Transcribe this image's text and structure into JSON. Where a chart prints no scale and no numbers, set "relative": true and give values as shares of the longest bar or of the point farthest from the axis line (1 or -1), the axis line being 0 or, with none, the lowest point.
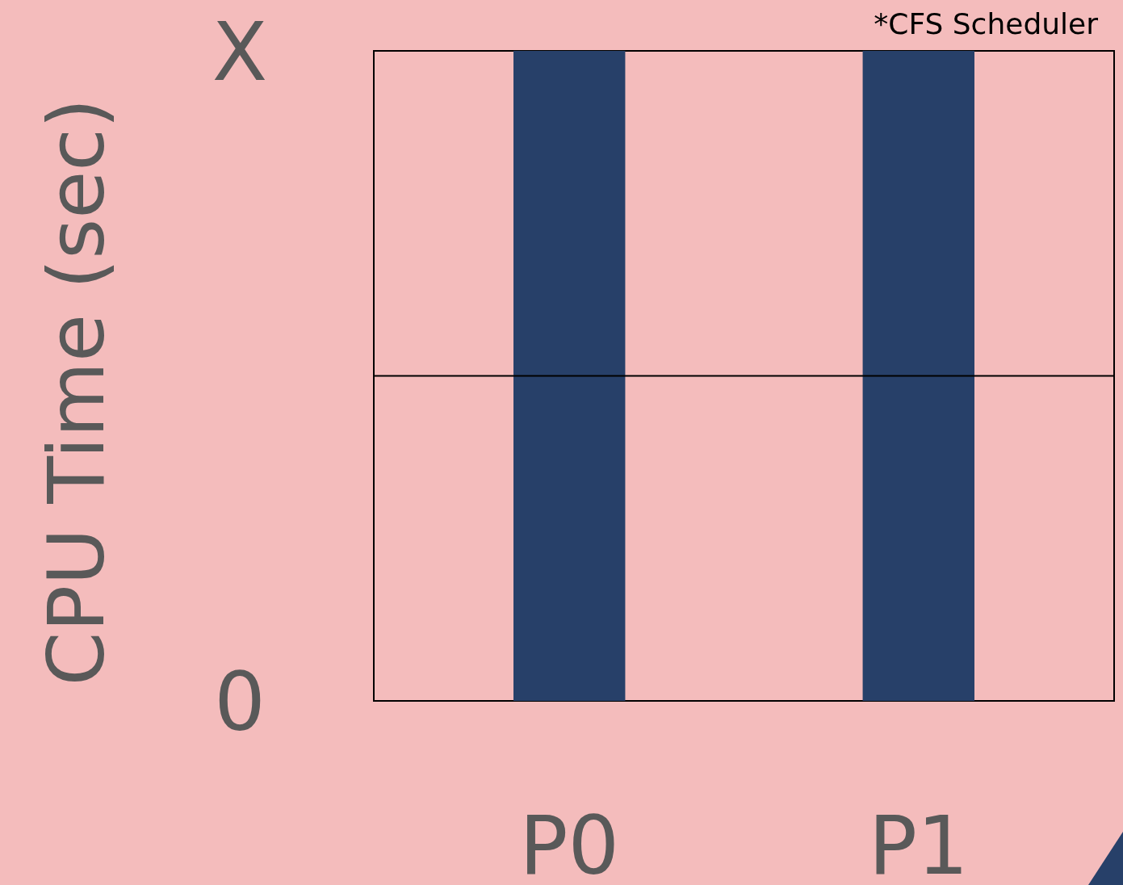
{
  "chart_data": {
    "type": "bar",
    "ylabel": "CPU Time (sec)",
    "relative": true,
    "annotations": [
      "*CFS Scheduler",
      "0",
      "X"
    ],
    "categories": [
      "P0",
      "P1"
    ],
    "values": [
      1,
      1
    ],
    "color": "#274069",
    "ref_lines": [
      {
        "axis": "y",
        "value": 0.5,
        "color": "#000000"
      }
    ]
  }
}
